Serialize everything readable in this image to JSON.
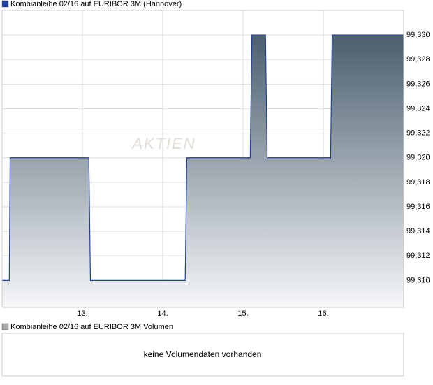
{
  "chart_data": {
    "type": "area",
    "legend_label": "Kombianleihe 02/16 auf EURIBOR 3M (Hannover)",
    "watermark": "AKTIEN",
    "x": [
      12,
      12.09,
      12.1,
      13.08,
      13.1,
      14.28,
      14.3,
      15.09,
      15.11,
      15.28,
      15.3,
      16.09,
      16.11,
      17
    ],
    "series": [
      {
        "name": "Kombianleihe 02/16 auf EURIBOR 3M (Hannover)",
        "color": "#1f3f9f",
        "values": [
          99.31,
          99.31,
          99.32,
          99.32,
          99.31,
          99.31,
          99.32,
          99.32,
          99.33,
          99.33,
          99.32,
          99.32,
          99.33,
          99.33
        ]
      }
    ],
    "xlim": [
      12,
      17
    ],
    "xticks": [
      {
        "value": 13,
        "label": "13."
      },
      {
        "value": 14,
        "label": "14."
      },
      {
        "value": 15,
        "label": "15."
      },
      {
        "value": 16,
        "label": "16."
      }
    ],
    "ylim": [
      99.3078,
      99.332
    ],
    "yticks": [
      {
        "value": 99.31,
        "label": "99,310"
      },
      {
        "value": 99.312,
        "label": "99,312"
      },
      {
        "value": 99.314,
        "label": "99,314"
      },
      {
        "value": 99.316,
        "label": "99,316"
      },
      {
        "value": 99.318,
        "label": "99,318"
      },
      {
        "value": 99.32,
        "label": "99,320"
      },
      {
        "value": 99.322,
        "label": "99,322"
      },
      {
        "value": 99.324,
        "label": "99,324"
      },
      {
        "value": 99.326,
        "label": "99,326"
      },
      {
        "value": 99.328,
        "label": "99,328"
      },
      {
        "value": 99.33,
        "label": "99,330"
      }
    ],
    "grid": true
  },
  "volume_panel": {
    "legend_label": "Kombianleihe 02/16 auf EURIBOR 3M Volumen",
    "message": "keine Volumendaten vorhanden"
  }
}
